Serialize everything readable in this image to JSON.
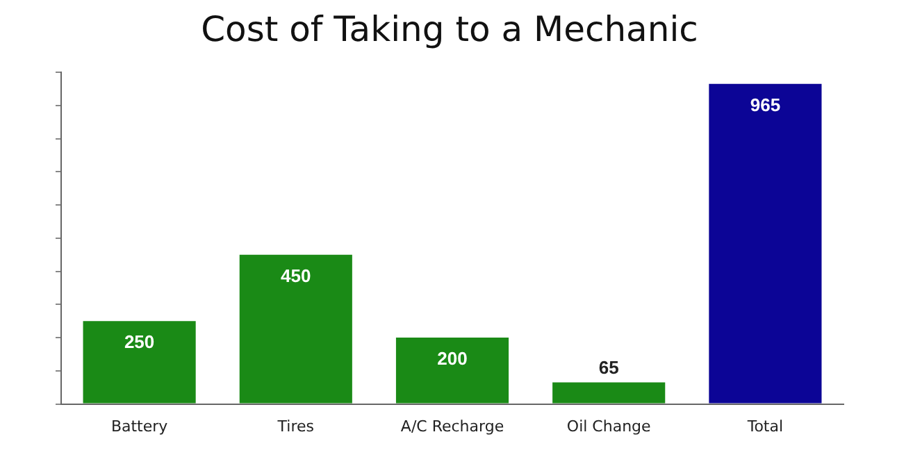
{
  "chart_data": {
    "type": "bar",
    "title": "Cost of Taking to a Mechanic",
    "categories": [
      "Battery",
      "Tires",
      "A/C Recharge",
      "Oil Change",
      "Total"
    ],
    "values": [
      250,
      450,
      200,
      65,
      965
    ],
    "colors": [
      "#1a8a16",
      "#1a8a16",
      "#1a8a16",
      "#1a8a16",
      "#0c0596"
    ],
    "ylim": [
      0,
      1000
    ],
    "yticks": [
      {
        "value": 0,
        "label": null
      },
      {
        "value": 100,
        "label": null
      },
      {
        "value": 200,
        "label": null
      },
      {
        "value": 300,
        "label": null
      },
      {
        "value": 400,
        "label": null
      },
      {
        "value": 500,
        "label": null
      },
      {
        "value": 600,
        "label": null
      },
      {
        "value": 700,
        "label": null
      },
      {
        "value": 800,
        "label": null
      },
      {
        "value": 900,
        "label": null
      },
      {
        "value": 1000,
        "label": null
      }
    ],
    "tick_labels": "x",
    "grid": false,
    "legend": false,
    "data_labels": true
  }
}
